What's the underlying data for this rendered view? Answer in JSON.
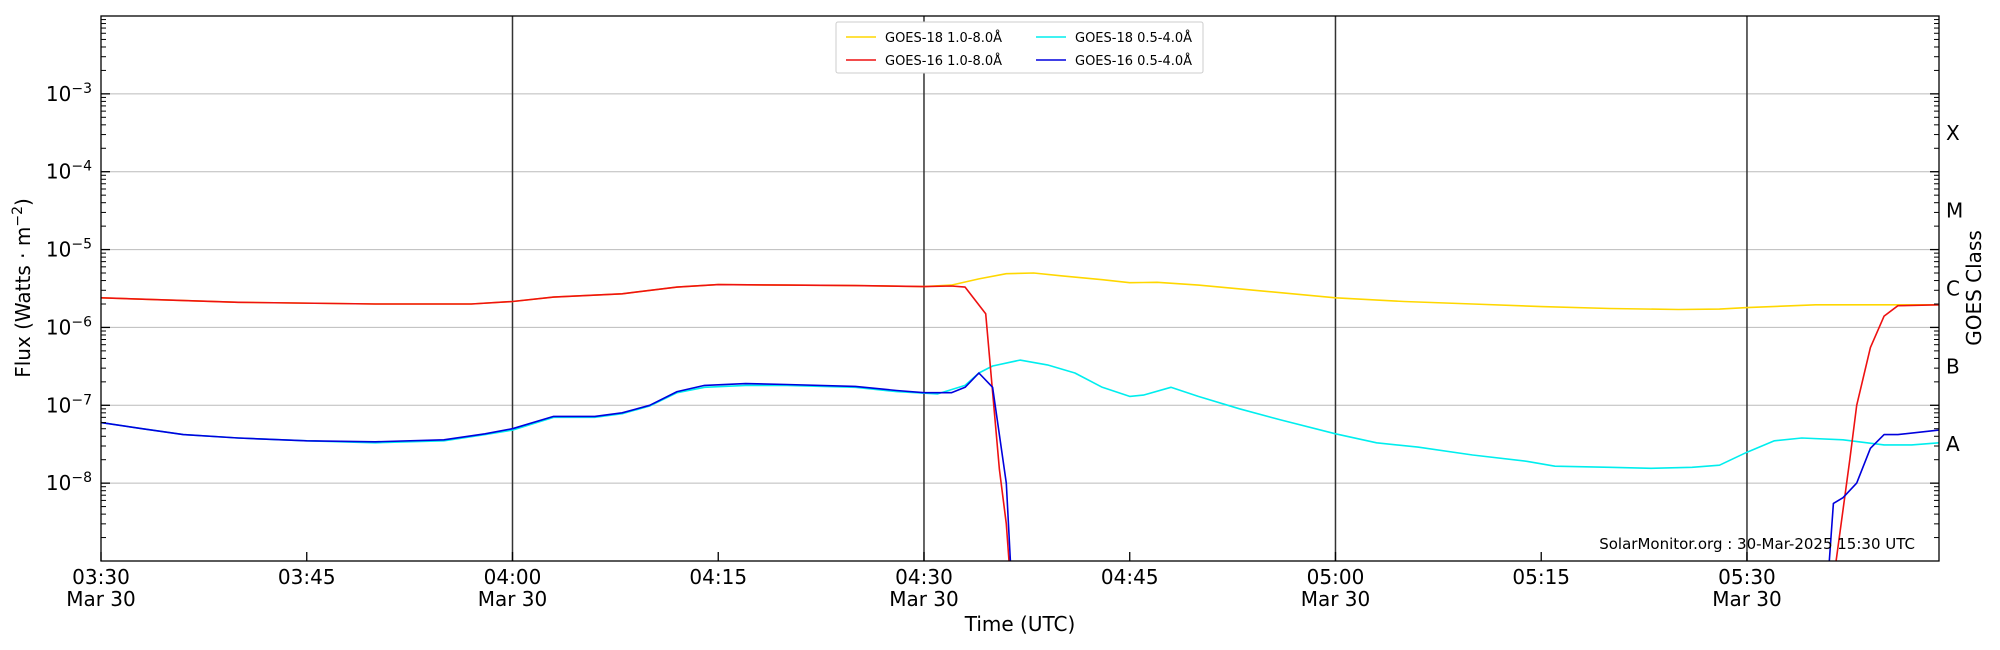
{
  "chart_data": {
    "type": "line",
    "ylabel": "Flux (Watts · m",
    "ylabel_sup": "−2",
    "ylabel_close": ")",
    "xlabel": "Time (UTC)",
    "y2label": "GOES Class",
    "credit": "SolarMonitor.org : 30-Mar-2025 15:30 UTC",
    "y_scale": "log",
    "ylim": [
      1e-09,
      0.01
    ],
    "xlim_minutes": [
      0,
      134
    ],
    "grid": true,
    "legend_position": "top-center",
    "y_ticks": [
      {
        "exp": -8,
        "base": "10",
        "sup": "−8"
      },
      {
        "exp": -7,
        "base": "10",
        "sup": "−7"
      },
      {
        "exp": -6,
        "base": "10",
        "sup": "−6"
      },
      {
        "exp": -5,
        "base": "10",
        "sup": "−5"
      },
      {
        "exp": -4,
        "base": "10",
        "sup": "−4"
      },
      {
        "exp": -3,
        "base": "10",
        "sup": "−3"
      }
    ],
    "x_ticks": [
      {
        "t": 0,
        "label": "03:30",
        "sub": "Mar 30"
      },
      {
        "t": 15,
        "label": "03:45",
        "sub": ""
      },
      {
        "t": 30,
        "label": "04:00",
        "sub": "Mar 30"
      },
      {
        "t": 45,
        "label": "04:15",
        "sub": ""
      },
      {
        "t": 60,
        "label": "04:30",
        "sub": "Mar 30"
      },
      {
        "t": 75,
        "label": "04:45",
        "sub": ""
      },
      {
        "t": 90,
        "label": "05:00",
        "sub": "Mar 30"
      },
      {
        "t": 105,
        "label": "05:15",
        "sub": ""
      },
      {
        "t": 120,
        "label": "05:30",
        "sub": "Mar 30"
      }
    ],
    "vlines": [
      30,
      60,
      90,
      120
    ],
    "goes_classes": [
      {
        "label": "A",
        "exp": -7.5
      },
      {
        "label": "B",
        "exp": -6.5
      },
      {
        "label": "C",
        "exp": -5.5
      },
      {
        "label": "M",
        "exp": -4.5
      },
      {
        "label": "X",
        "exp": -3.5
      }
    ],
    "series": [
      {
        "name": "GOES-18 1.0-8.0Å",
        "color": "#ffd700",
        "points": [
          [
            0,
            2.4e-06
          ],
          [
            10,
            2.1e-06
          ],
          [
            20,
            2e-06
          ],
          [
            27,
            2e-06
          ],
          [
            30,
            2.15e-06
          ],
          [
            33,
            2.45e-06
          ],
          [
            38,
            2.7e-06
          ],
          [
            42,
            3.3e-06
          ],
          [
            45,
            3.55e-06
          ],
          [
            50,
            3.5e-06
          ],
          [
            55,
            3.45e-06
          ],
          [
            60,
            3.35e-06
          ],
          [
            62,
            3.5e-06
          ],
          [
            64,
            4.2e-06
          ],
          [
            66,
            4.9e-06
          ],
          [
            68,
            5e-06
          ],
          [
            70,
            4.6e-06
          ],
          [
            73,
            4.1e-06
          ],
          [
            75,
            3.75e-06
          ],
          [
            77,
            3.8e-06
          ],
          [
            80,
            3.5e-06
          ],
          [
            85,
            2.9e-06
          ],
          [
            90,
            2.4e-06
          ],
          [
            95,
            2.15e-06
          ],
          [
            100,
            2e-06
          ],
          [
            105,
            1.85e-06
          ],
          [
            110,
            1.75e-06
          ],
          [
            115,
            1.7e-06
          ],
          [
            118,
            1.72e-06
          ],
          [
            120,
            1.8e-06
          ],
          [
            125,
            1.95e-06
          ],
          [
            134,
            1.95e-06
          ]
        ]
      },
      {
        "name": "GOES-18 0.5-4.0Å",
        "color": "#00eeee",
        "points": [
          [
            0,
            6e-08
          ],
          [
            3,
            5e-08
          ],
          [
            6,
            4.2e-08
          ],
          [
            10,
            3.8e-08
          ],
          [
            15,
            3.5e-08
          ],
          [
            20,
            3.3e-08
          ],
          [
            25,
            3.5e-08
          ],
          [
            28,
            4.2e-08
          ],
          [
            30,
            4.8e-08
          ],
          [
            33,
            7e-08
          ],
          [
            36,
            7e-08
          ],
          [
            38,
            7.8e-08
          ],
          [
            40,
            9.8e-08
          ],
          [
            42,
            1.45e-07
          ],
          [
            44,
            1.7e-07
          ],
          [
            47,
            1.8e-07
          ],
          [
            50,
            1.8e-07
          ],
          [
            55,
            1.7e-07
          ],
          [
            58,
            1.5e-07
          ],
          [
            61,
            1.4e-07
          ],
          [
            63,
            1.8e-07
          ],
          [
            64,
            2.6e-07
          ],
          [
            65,
            3.2e-07
          ],
          [
            67,
            3.8e-07
          ],
          [
            69,
            3.3e-07
          ],
          [
            71,
            2.6e-07
          ],
          [
            73,
            1.7e-07
          ],
          [
            75,
            1.3e-07
          ],
          [
            76,
            1.35e-07
          ],
          [
            78,
            1.7e-07
          ],
          [
            80,
            1.3e-07
          ],
          [
            83,
            9e-08
          ],
          [
            86,
            6.5e-08
          ],
          [
            90,
            4.3e-08
          ],
          [
            93,
            3.3e-08
          ],
          [
            96,
            2.9e-08
          ],
          [
            100,
            2.3e-08
          ],
          [
            104,
            1.9e-08
          ],
          [
            106,
            1.65e-08
          ],
          [
            110,
            1.6e-08
          ],
          [
            113,
            1.55e-08
          ],
          [
            116,
            1.6e-08
          ],
          [
            118,
            1.7e-08
          ],
          [
            120,
            2.5e-08
          ],
          [
            122,
            3.5e-08
          ],
          [
            124,
            3.8e-08
          ],
          [
            127,
            3.6e-08
          ],
          [
            130,
            3.1e-08
          ],
          [
            132,
            3.1e-08
          ],
          [
            134,
            3.3e-08
          ]
        ]
      },
      {
        "name": "GOES-16 1.0-8.0Å",
        "color": "#ee1111",
        "points": [
          [
            0,
            2.4e-06
          ],
          [
            10,
            2.1e-06
          ],
          [
            20,
            2e-06
          ],
          [
            27,
            2e-06
          ],
          [
            30,
            2.15e-06
          ],
          [
            33,
            2.45e-06
          ],
          [
            38,
            2.7e-06
          ],
          [
            42,
            3.3e-06
          ],
          [
            45,
            3.55e-06
          ],
          [
            50,
            3.5e-06
          ],
          [
            55,
            3.45e-06
          ],
          [
            60,
            3.35e-06
          ],
          [
            62,
            3.4e-06
          ],
          [
            63,
            3.3e-06
          ],
          [
            64.5,
            1.5e-06
          ],
          [
            65.5,
            1.5e-08
          ],
          [
            66,
            3e-09
          ],
          [
            66.2,
            1e-09
          ],
          null,
          [
            126.5,
            1e-09
          ],
          [
            127.5,
            2e-08
          ],
          [
            128,
            1e-07
          ],
          [
            129,
            5.5e-07
          ],
          [
            130,
            1.4e-06
          ],
          [
            131,
            1.9e-06
          ],
          [
            134,
            1.95e-06
          ]
        ]
      },
      {
        "name": "GOES-16 0.5-4.0Å",
        "color": "#0000dd",
        "points": [
          [
            0,
            6e-08
          ],
          [
            3,
            5e-08
          ],
          [
            6,
            4.2e-08
          ],
          [
            10,
            3.8e-08
          ],
          [
            15,
            3.5e-08
          ],
          [
            20,
            3.4e-08
          ],
          [
            25,
            3.6e-08
          ],
          [
            28,
            4.3e-08
          ],
          [
            30,
            5e-08
          ],
          [
            33,
            7.2e-08
          ],
          [
            36,
            7.2e-08
          ],
          [
            38,
            8e-08
          ],
          [
            40,
            1e-07
          ],
          [
            42,
            1.5e-07
          ],
          [
            44,
            1.8e-07
          ],
          [
            47,
            1.9e-07
          ],
          [
            50,
            1.85e-07
          ],
          [
            55,
            1.75e-07
          ],
          [
            58,
            1.55e-07
          ],
          [
            60,
            1.45e-07
          ],
          [
            62,
            1.45e-07
          ],
          [
            63,
            1.7e-07
          ],
          [
            64,
            2.6e-07
          ],
          [
            65,
            1.7e-07
          ],
          [
            66,
            1e-08
          ],
          [
            66.3,
            1e-09
          ],
          null,
          [
            126,
            1e-09
          ],
          [
            126.3,
            5.5e-09
          ],
          [
            127,
            6.5e-09
          ],
          [
            128,
            1e-08
          ],
          [
            129,
            2.8e-08
          ],
          [
            130,
            4.2e-08
          ],
          [
            131,
            4.2e-08
          ],
          [
            134,
            4.8e-08
          ]
        ]
      }
    ]
  }
}
